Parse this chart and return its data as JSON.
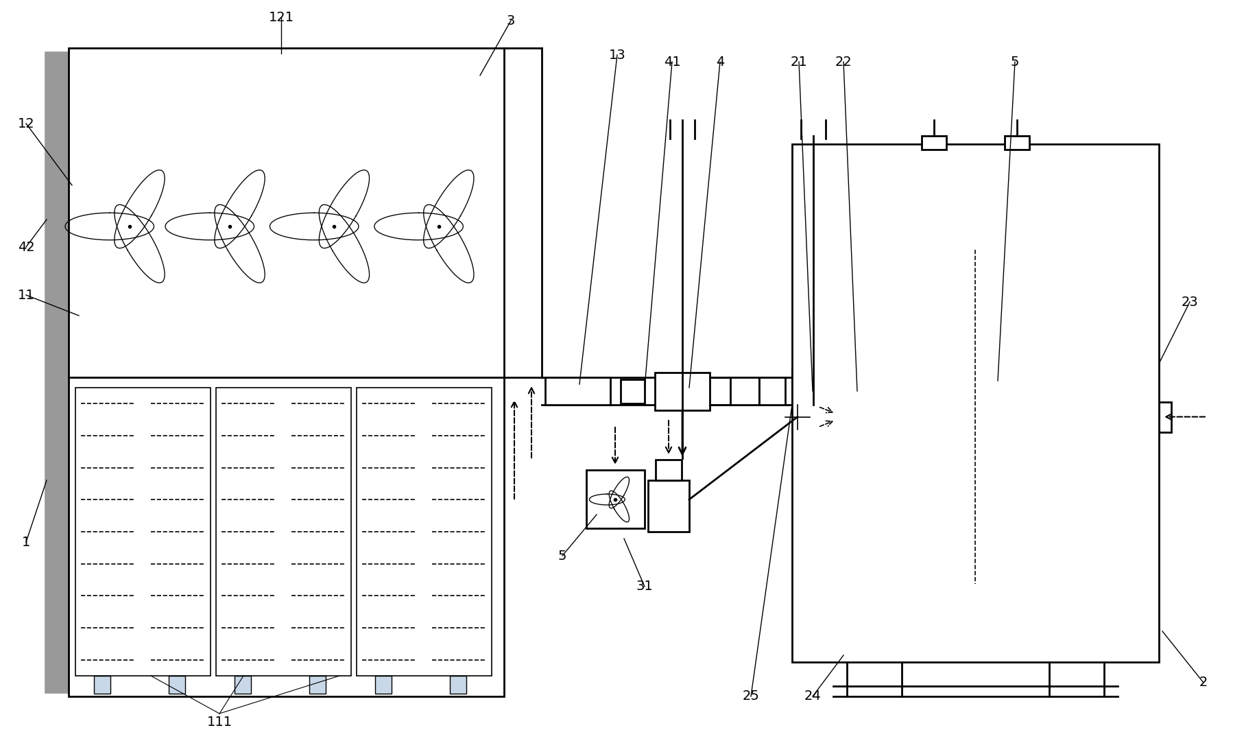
{
  "bg_color": "#ffffff",
  "line_color": "#000000",
  "gray_color": "#999999",
  "light_blue": "#c8d8e8",
  "fig_width": 17.99,
  "fig_height": 10.8
}
